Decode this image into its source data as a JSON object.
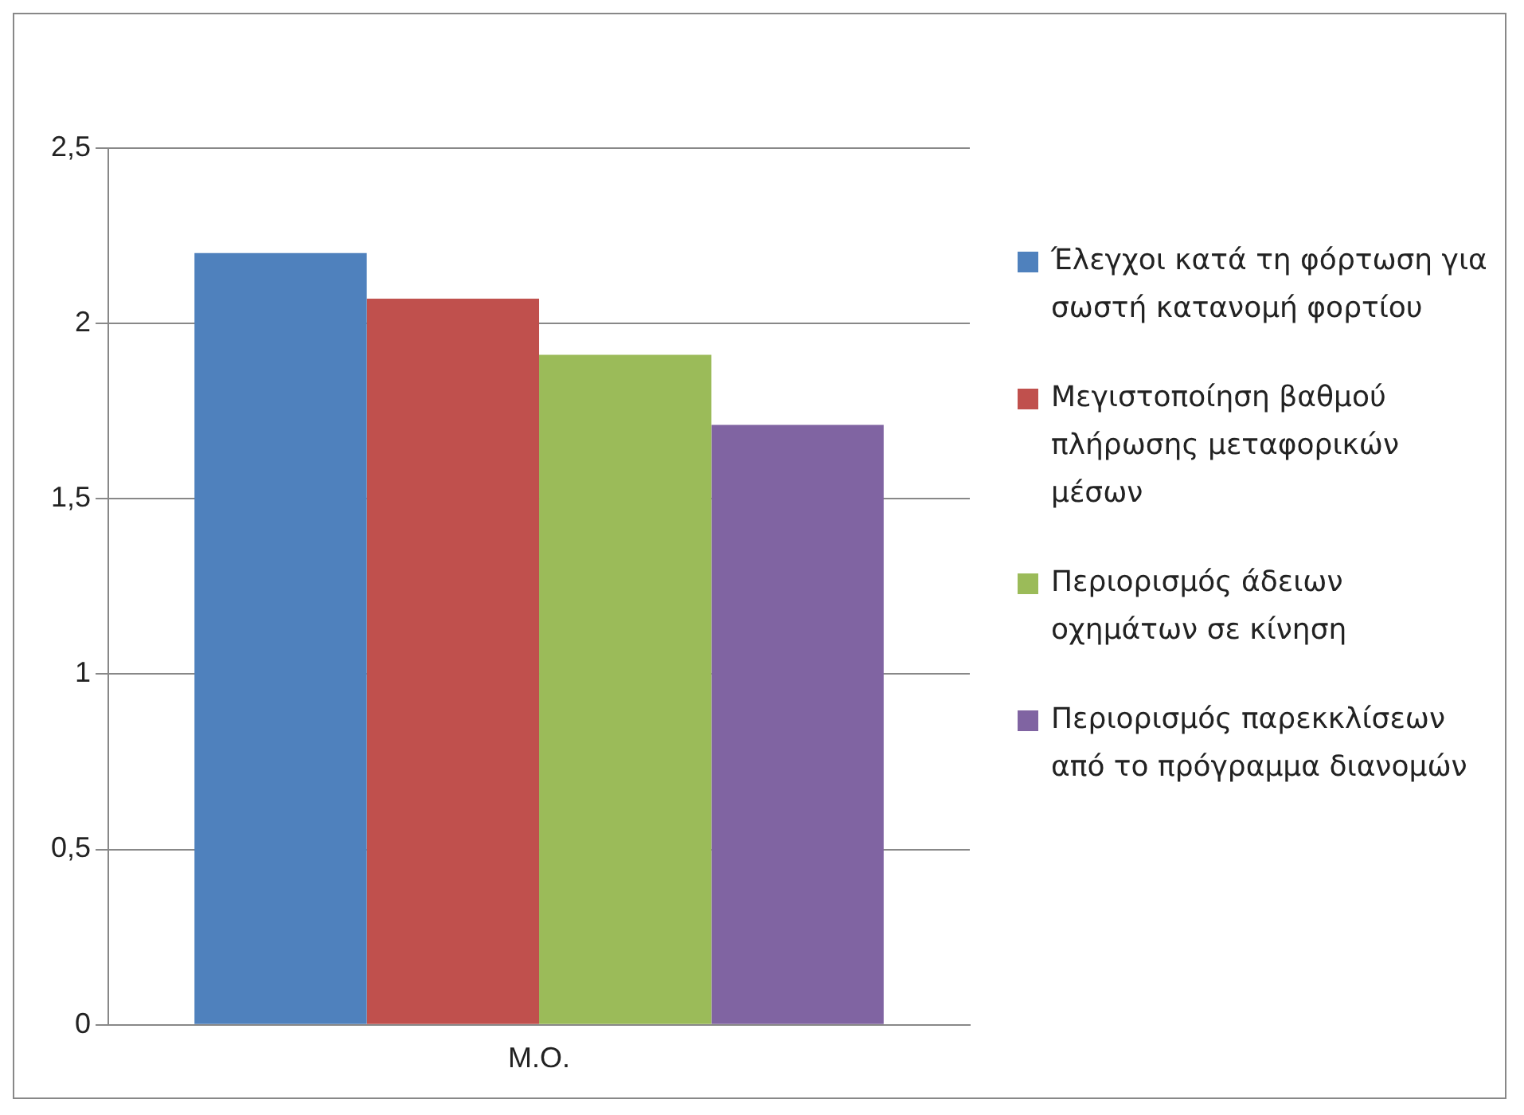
{
  "chart_data": {
    "type": "bar",
    "categories": [
      "Μ.Ο."
    ],
    "series": [
      {
        "name": "Έλεγχοι κατά τη φόρτωση για σωστή κατανομή φορτίου",
        "color": "#4f81bd",
        "values": [
          2.2
        ]
      },
      {
        "name": "Μεγιστοποίηση βαθμού πλήρωσης μεταφορικών μέσων",
        "color": "#c0504d",
        "values": [
          2.07
        ]
      },
      {
        "name": "Περιορισμός άδειων οχημάτων σε κίνηση",
        "color": "#9bbb59",
        "values": [
          1.91
        ]
      },
      {
        "name": "Περιορισμός παρεκκλίσεων από το πρόγραμμα διανομών",
        "color": "#8064a2",
        "values": [
          1.71
        ]
      }
    ],
    "ylim": [
      0,
      2.5
    ],
    "yticks": [
      0,
      {
        "value": 0.5,
        "label": "0,5"
      },
      1,
      {
        "value": 1.5,
        "label": "1,5"
      },
      2,
      {
        "value": 2.5,
        "label": "2,5"
      }
    ],
    "grid": "y",
    "legend": "right"
  }
}
